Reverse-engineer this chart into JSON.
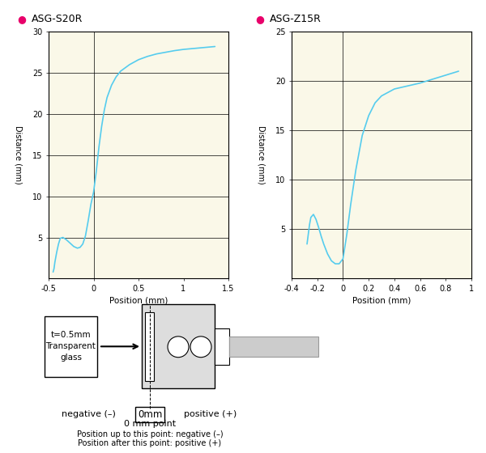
{
  "bg_color": "#FAF8E8",
  "line_color": "#55CCEE",
  "dot_color": "#E8006A",
  "s20r_title": "ASG-S20R",
  "s20r_xlim": [
    -0.5,
    1.5
  ],
  "s20r_ylim": [
    0,
    30
  ],
  "s20r_xticks": [
    -0.5,
    0,
    0.5,
    1.0,
    1.5
  ],
  "s20r_xtick_labels": [
    "-0.5",
    "0",
    "0.5",
    "1",
    "1.5"
  ],
  "s20r_yticks": [
    5,
    10,
    15,
    20,
    25,
    30
  ],
  "s20r_ytick_labels": [
    "5",
    "10",
    "15",
    "20",
    "25",
    "30"
  ],
  "s20r_xlabel": "Position (mm)",
  "s20r_ylabel": "Distance (mm)",
  "s20r_x": [
    -0.45,
    -0.44,
    -0.43,
    -0.41,
    -0.39,
    -0.37,
    -0.34,
    -0.3,
    -0.26,
    -0.22,
    -0.18,
    -0.15,
    -0.12,
    -0.09,
    -0.06,
    -0.03,
    0.0,
    0.03,
    0.06,
    0.09,
    0.12,
    0.15,
    0.2,
    0.25,
    0.3,
    0.4,
    0.5,
    0.6,
    0.7,
    0.8,
    0.9,
    1.0,
    1.1,
    1.2,
    1.35
  ],
  "s20r_y": [
    0.8,
    1.2,
    2.0,
    3.2,
    4.2,
    4.9,
    5.0,
    4.7,
    4.3,
    3.9,
    3.7,
    3.8,
    4.2,
    5.2,
    7.0,
    9.0,
    10.5,
    13.0,
    16.0,
    18.5,
    20.5,
    22.0,
    23.5,
    24.5,
    25.2,
    26.0,
    26.6,
    27.0,
    27.3,
    27.5,
    27.7,
    27.85,
    27.95,
    28.05,
    28.2
  ],
  "z15r_title": "ASG-Z15R",
  "z15r_xlim": [
    -0.4,
    1.0
  ],
  "z15r_ylim": [
    0,
    25
  ],
  "z15r_xticks": [
    -0.4,
    -0.2,
    0,
    0.2,
    0.4,
    0.6,
    0.8,
    1.0
  ],
  "z15r_xtick_labels": [
    "-0.4",
    "-0.2",
    "0",
    "0.2",
    "0.4",
    "0.6",
    "0.8",
    "1"
  ],
  "z15r_yticks": [
    5,
    10,
    15,
    20,
    25
  ],
  "z15r_ytick_labels": [
    "5",
    "10",
    "15",
    "20",
    "25"
  ],
  "z15r_xlabel": "Position (mm)",
  "z15r_ylabel": "Distance (mm)",
  "z15r_x": [
    -0.28,
    -0.27,
    -0.26,
    -0.25,
    -0.23,
    -0.21,
    -0.19,
    -0.17,
    -0.15,
    -0.12,
    -0.09,
    -0.06,
    -0.03,
    0.0,
    0.03,
    0.06,
    0.1,
    0.15,
    0.2,
    0.25,
    0.3,
    0.4,
    0.5,
    0.6,
    0.7,
    0.8,
    0.9
  ],
  "z15r_y": [
    3.5,
    4.5,
    5.5,
    6.2,
    6.5,
    6.0,
    5.2,
    4.3,
    3.5,
    2.5,
    1.8,
    1.5,
    1.5,
    2.0,
    4.5,
    7.5,
    11.0,
    14.5,
    16.5,
    17.8,
    18.5,
    19.2,
    19.5,
    19.8,
    20.2,
    20.6,
    21.0
  ],
  "diag_glass_text": "t=0.5mm\nTransparent\nglass",
  "diag_neg_text": "negative (–)",
  "diag_pos_text": "positive (+)",
  "diag_0mm_text": "0mm",
  "diag_0mm_point": "0 mm point",
  "diag_note1": "Position up to this point: negative (–)",
  "diag_note2": "Position after this point: positive (+)"
}
